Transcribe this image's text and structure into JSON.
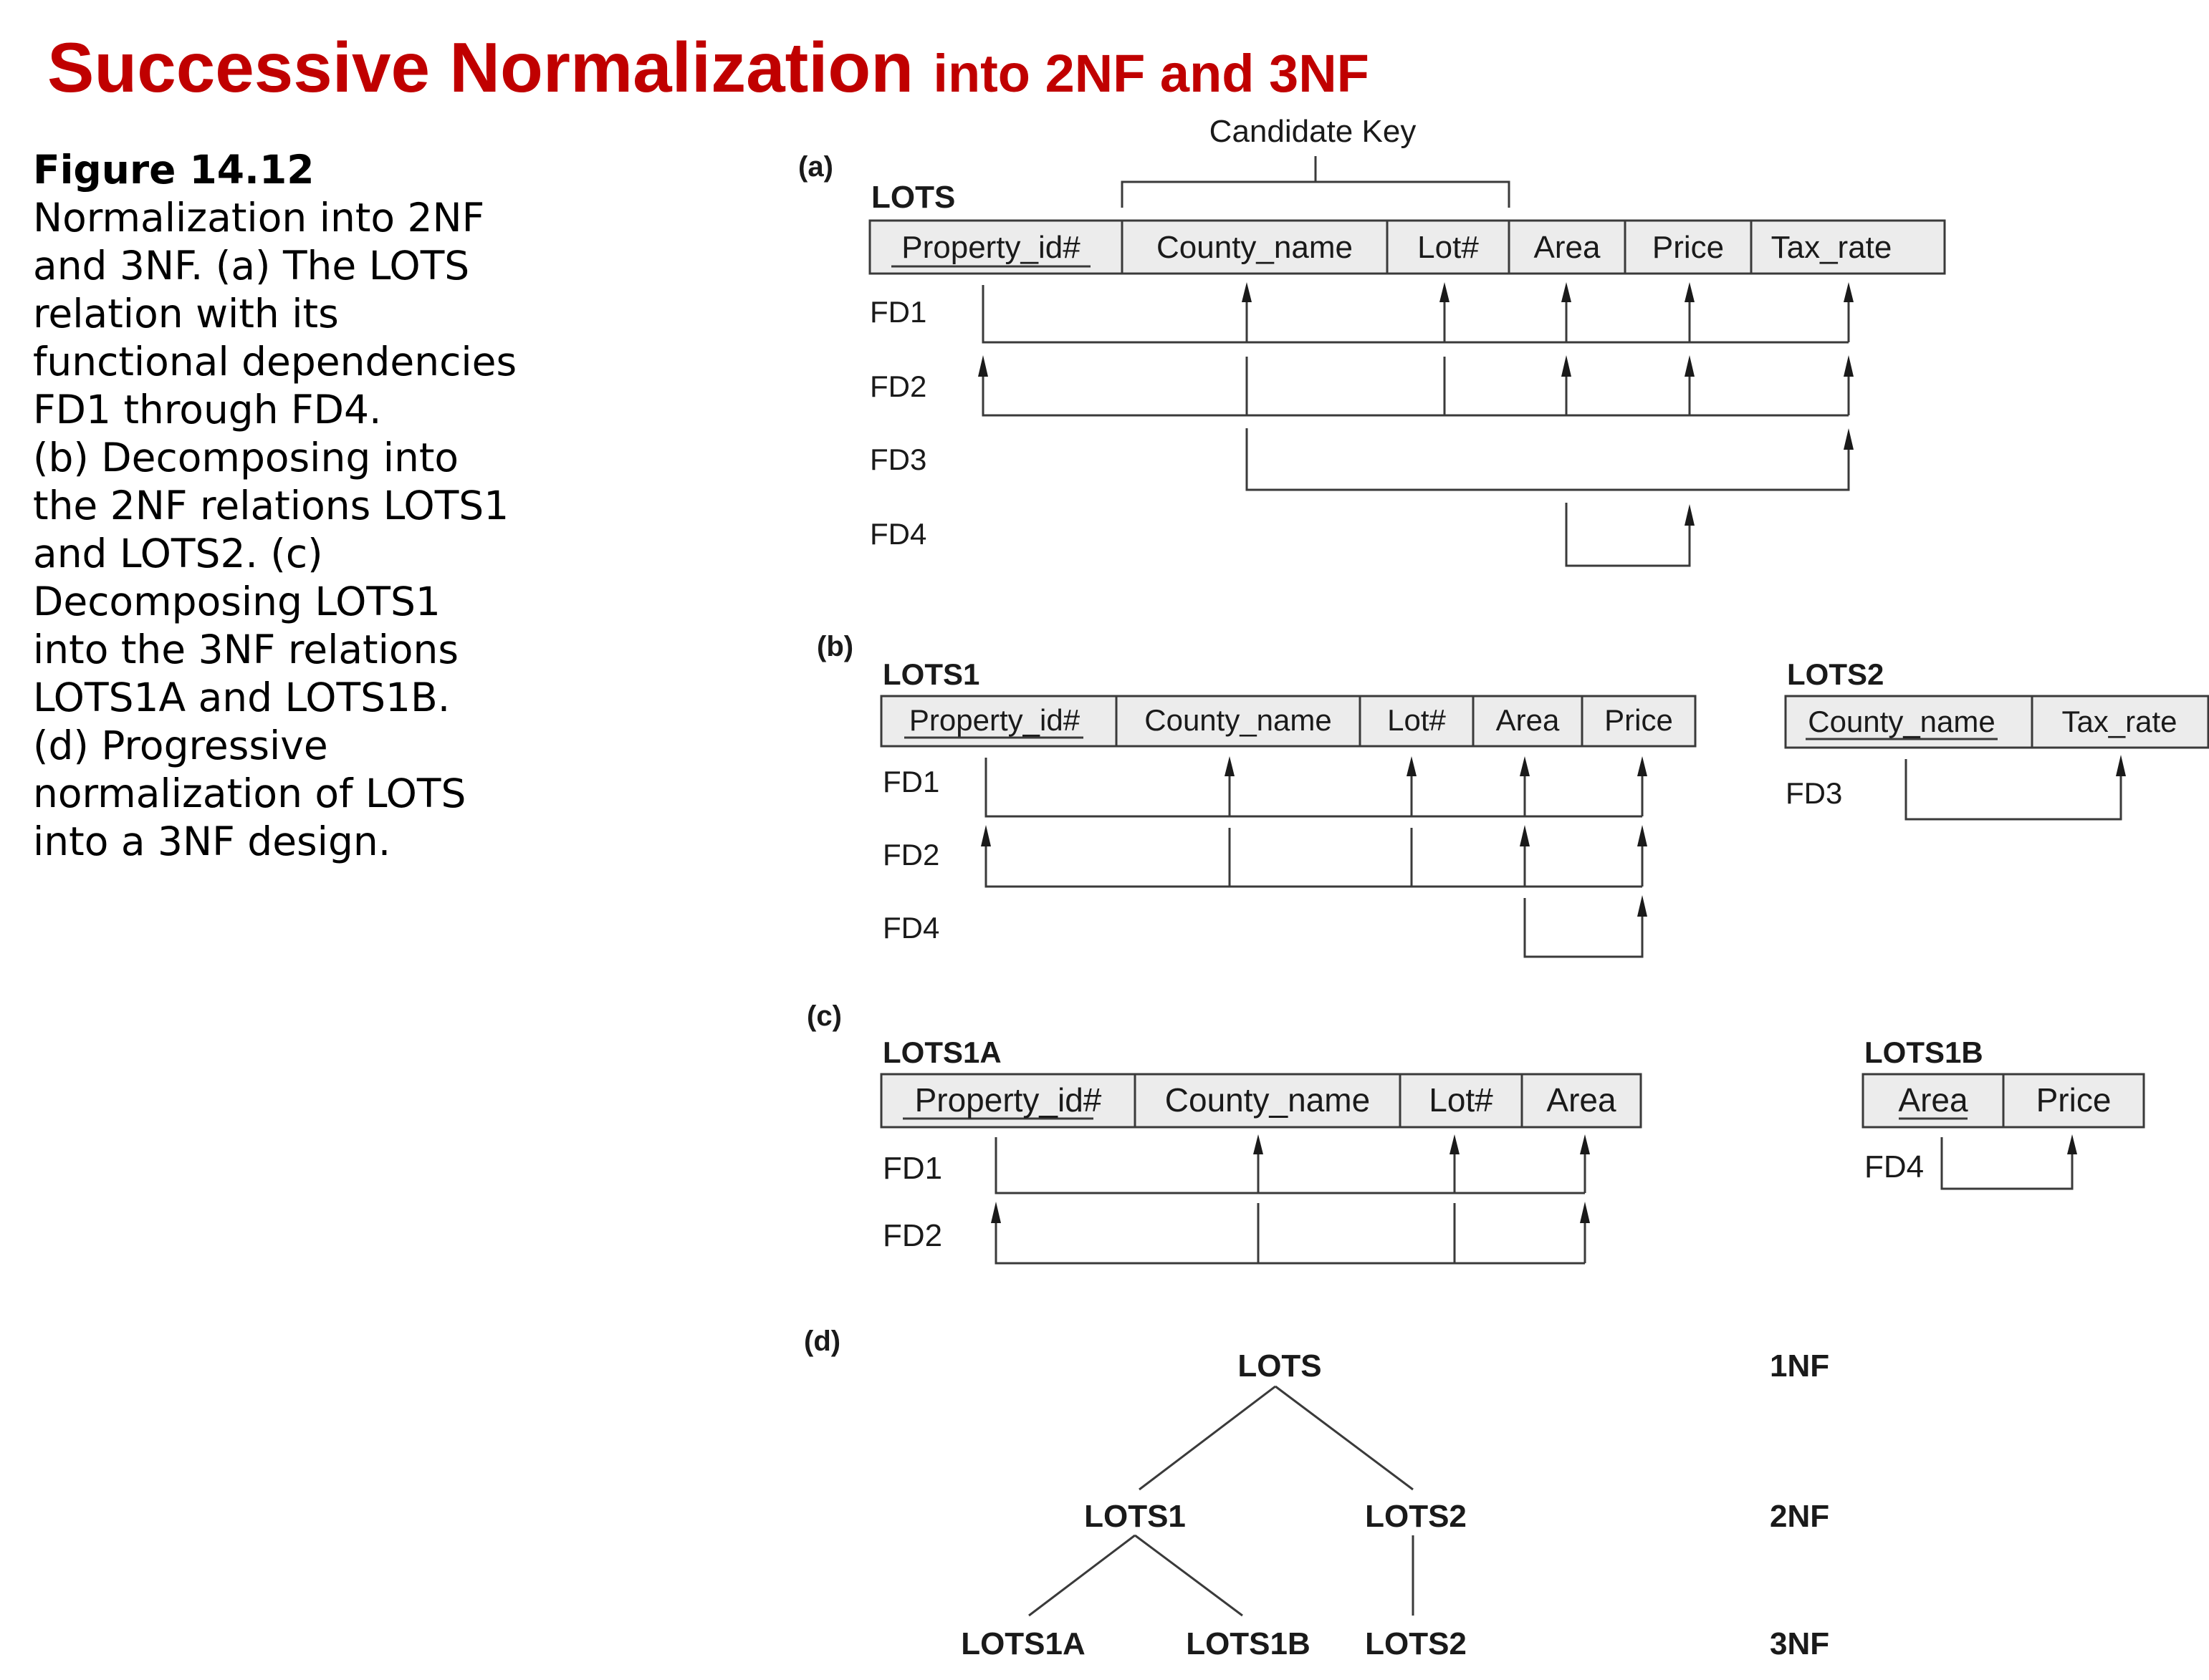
{
  "title": {
    "main": "Successive Normalization",
    "sub": "into 2NF and 3NF"
  },
  "caption": {
    "label": "Figure 14.12",
    "text": "Normalization into 2NF\nand 3NF. (a) The LOTS\nrelation with its\nfunctional dependencies\nFD1 through FD4.\n(b) Decomposing into\nthe 2NF relations LOTS1\nand LOTS2. (c)\nDecomposing LOTS1\ninto the 3NF relations\nLOTS1A and LOTS1B.\n(d) Progressive\nnormalization of LOTS\ninto a 3NF design."
  },
  "panels": {
    "a": {
      "label": "(a)",
      "relation": "LOTS",
      "candidate_key_label": "Candidate Key",
      "attributes": [
        "Property_id#",
        "County_name",
        "Lot#",
        "Area",
        "Price",
        "Tax_rate"
      ],
      "fds": [
        "FD1",
        "FD2",
        "FD3",
        "FD4"
      ]
    },
    "b": {
      "label": "(b)",
      "lots1": {
        "relation": "LOTS1",
        "attributes": [
          "Property_id#",
          "County_name",
          "Lot#",
          "Area",
          "Price"
        ],
        "fds": [
          "FD1",
          "FD2",
          "FD4"
        ]
      },
      "lots2": {
        "relation": "LOTS2",
        "attributes": [
          "County_name",
          "Tax_rate"
        ],
        "fds": [
          "FD3"
        ]
      }
    },
    "c": {
      "label": "(c)",
      "lots1a": {
        "relation": "LOTS1A",
        "attributes": [
          "Property_id#",
          "County_name",
          "Lot#",
          "Area"
        ],
        "fds": [
          "FD1",
          "FD2"
        ]
      },
      "lots1b": {
        "relation": "LOTS1B",
        "attributes": [
          "Area",
          "Price"
        ],
        "fds": [
          "FD4"
        ]
      }
    },
    "d": {
      "label": "(d)",
      "nodes": {
        "root": "LOTS",
        "l1": "LOTS1",
        "l2": "LOTS2",
        "l1a": "LOTS1A",
        "l1b": "LOTS1B",
        "l2b": "LOTS2"
      },
      "levels": [
        "1NF",
        "2NF",
        "3NF"
      ]
    }
  }
}
